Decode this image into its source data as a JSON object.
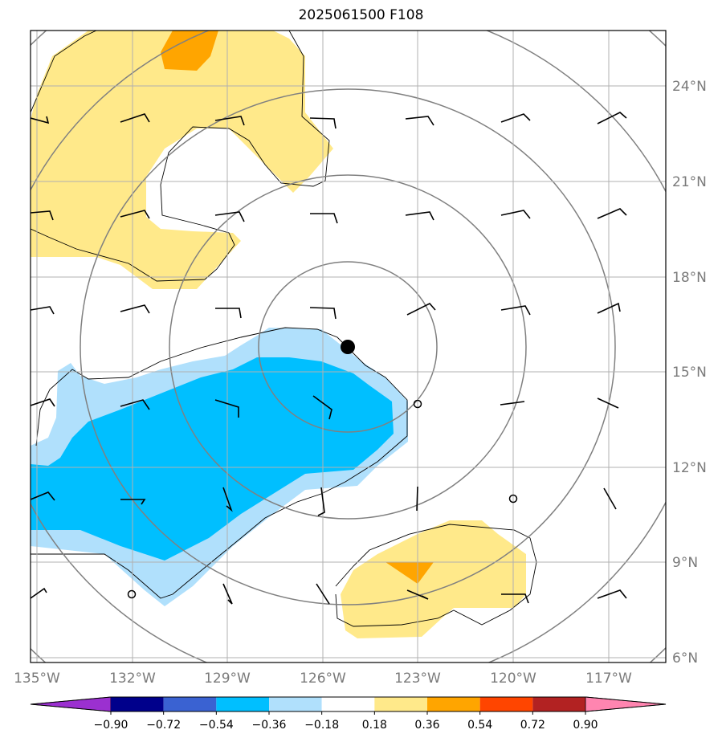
{
  "title": "2025061500 F108",
  "lon_ticks": [
    "135°W",
    "132°W",
    "129°W",
    "126°W",
    "123°W",
    "120°W",
    "117°W"
  ],
  "lat_ticks": [
    "24°N",
    "21°N",
    "18°N",
    "15°N",
    "12°N",
    "9°N",
    "6°N"
  ],
  "colorbar": {
    "ticks": [
      "−0.90",
      "−0.72",
      "−0.54",
      "−0.36",
      "−0.18",
      "0.18",
      "0.36",
      "0.54",
      "0.72",
      "0.90"
    ],
    "colors": [
      "#9b30d0",
      "#00008b",
      "#3a62d2",
      "#00bfff",
      "#b0e0fc",
      "#ffffff",
      "#ffe98a",
      "#ffa500",
      "#ff4500",
      "#b22222",
      "#ff85b0"
    ]
  },
  "fill_colors": {
    "light_blue": "#b0e0fc",
    "deep_sky": "#00bfff",
    "light_yellow": "#ffe98a",
    "orange": "#ffa500"
  },
  "center_marker": {
    "label": "storm-center"
  }
}
